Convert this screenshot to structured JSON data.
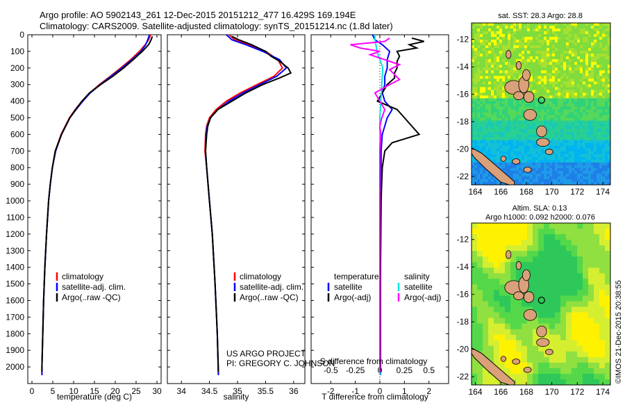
{
  "header": {
    "line1": "Argo profile: AO 5902143_261 12-Dec-2015 20151212_477 16.429S 169.194E",
    "line2": "Climatology: CARS2009. Satellite-adjusted climatology: synTS_20151214.nc (1.8d later)"
  },
  "credit": {
    "project": "US ARGO PROJECT",
    "pi": "PI: GREGORY C. JOHNSON",
    "imos": "©IMOS 21-Dec-2015 20:38:55"
  },
  "colors": {
    "climatology": "#ff0000",
    "satellite": "#0000ff",
    "argo": "#000000",
    "sat_salinity": "#00e5e5",
    "argo_salinity": "#ff00ff"
  },
  "chart_data": [
    {
      "type": "line",
      "name": "temperature",
      "xlabel": "temperature (deg C)",
      "ylabel": "",
      "xlim": [
        -1,
        31
      ],
      "ylim": [
        2100,
        0
      ],
      "xticks": [
        0,
        5,
        10,
        15,
        20,
        25,
        30
      ],
      "yticks": [
        0,
        100,
        200,
        300,
        400,
        500,
        600,
        700,
        800,
        900,
        1000,
        1100,
        1200,
        1300,
        1400,
        1500,
        1600,
        1700,
        1800,
        1900,
        2000
      ],
      "legend": [
        "climatology",
        "satellite-adj. clim.",
        "Argo(..raw -QC)"
      ],
      "series": [
        {
          "name": "climatology",
          "depth": [
            0,
            30,
            60,
            100,
            150,
            200,
            250,
            300,
            350,
            400,
            450,
            500,
            600,
            700,
            800,
            900,
            1000,
            1200,
            1400,
            1600,
            1800,
            2000,
            2050
          ],
          "values": [
            28.5,
            28.0,
            27.2,
            25.8,
            23.7,
            21.3,
            18.8,
            16.2,
            13.9,
            12.0,
            10.4,
            9.0,
            7.0,
            5.6,
            4.9,
            4.4,
            4.0,
            3.5,
            3.1,
            2.8,
            2.6,
            2.4,
            2.4
          ]
        },
        {
          "name": "satellite-adj. clim.",
          "depth": [
            0,
            30,
            60,
            100,
            150,
            200,
            250,
            300,
            350,
            400,
            450,
            500,
            600,
            700,
            800,
            900,
            1000,
            1200,
            1400,
            1600,
            1800,
            2000,
            2050
          ],
          "values": [
            28.2,
            27.8,
            27.3,
            26.2,
            24.0,
            21.6,
            19.0,
            16.4,
            14.0,
            12.2,
            10.6,
            9.1,
            7.1,
            5.7,
            4.9,
            4.4,
            4.0,
            3.5,
            3.1,
            2.8,
            2.6,
            2.4,
            2.4
          ]
        },
        {
          "name": "Argo(..raw -QC)",
          "depth": [
            10,
            30,
            60,
            100,
            150,
            200,
            250,
            300,
            350,
            400,
            450,
            500,
            600,
            700,
            800,
            900,
            1000,
            1200,
            1400,
            1600,
            1800,
            2000,
            2030
          ],
          "values": [
            28.9,
            28.6,
            28.0,
            26.5,
            24.3,
            22.0,
            19.4,
            16.5,
            13.8,
            12.0,
            10.5,
            9.1,
            7.1,
            5.6,
            4.9,
            4.4,
            4.0,
            3.5,
            3.1,
            2.8,
            2.6,
            2.4,
            2.4
          ]
        }
      ]
    },
    {
      "type": "line",
      "name": "salinity",
      "xlabel": "salinity",
      "ylabel": "",
      "xlim": [
        33.75,
        36.2
      ],
      "ylim": [
        2100,
        0
      ],
      "xticks": [
        34,
        34.5,
        35,
        35.5,
        36
      ],
      "legend": [
        "climatology",
        "satellite-adj. clim.",
        "Argo(..raw -QC)"
      ],
      "series": [
        {
          "name": "climatology",
          "depth": [
            0,
            30,
            60,
            100,
            150,
            200,
            250,
            300,
            350,
            400,
            450,
            500,
            550,
            600,
            700,
            800,
            1000,
            1200,
            1500,
            1800,
            2050
          ],
          "values": [
            34.85,
            34.95,
            35.2,
            35.5,
            35.72,
            35.8,
            35.65,
            35.35,
            35.05,
            34.8,
            34.62,
            34.5,
            34.45,
            34.43,
            34.42,
            34.45,
            34.5,
            34.55,
            34.6,
            34.64,
            34.66
          ]
        },
        {
          "name": "satellite-adj. clim.",
          "depth": [
            0,
            30,
            60,
            100,
            150,
            200,
            250,
            300,
            350,
            400,
            450,
            500,
            550,
            600,
            700,
            800,
            1000,
            1200,
            1500,
            1800,
            2050
          ],
          "values": [
            34.8,
            34.9,
            35.15,
            35.45,
            35.75,
            35.87,
            35.7,
            35.4,
            35.1,
            34.85,
            34.65,
            34.52,
            34.46,
            34.44,
            34.43,
            34.45,
            34.5,
            34.55,
            34.6,
            34.64,
            34.66
          ]
        },
        {
          "name": "Argo(..raw -QC)",
          "depth": [
            10,
            30,
            60,
            100,
            130,
            160,
            200,
            230,
            260,
            300,
            350,
            400,
            450,
            500,
            550,
            600,
            700,
            800,
            1000,
            1200,
            1500,
            1800,
            2030
          ],
          "values": [
            34.9,
            35.02,
            35.25,
            35.5,
            35.6,
            35.75,
            35.9,
            35.95,
            35.75,
            35.45,
            35.15,
            34.9,
            34.65,
            34.52,
            34.47,
            34.45,
            34.43,
            34.45,
            34.5,
            34.55,
            34.6,
            34.64,
            34.66
          ]
        }
      ]
    },
    {
      "type": "line",
      "name": "difference from climatology",
      "xlabel": "T difference from climatology",
      "xlabel_top": "S difference from climatology",
      "xlim": [
        -2.8,
        2.8
      ],
      "ylim": [
        2100,
        0
      ],
      "xticks": [
        -2,
        -1,
        0,
        1,
        2
      ],
      "xticks_top": [
        -0.5,
        -0.25,
        0,
        0.25,
        0.5
      ],
      "legend_t": [
        "temperature",
        "satellite",
        "Argo(-adj)"
      ],
      "legend_s": [
        "salinity",
        "satellite",
        "Argo(-adj)"
      ],
      "series": [
        {
          "name": "T satellite",
          "depth": [
            0,
            30,
            60,
            100,
            150,
            200,
            250,
            300,
            350,
            400,
            450,
            500,
            600,
            700,
            800,
            1000,
            1500,
            2050
          ],
          "values": [
            -0.3,
            -0.2,
            0.1,
            0.4,
            0.3,
            0.3,
            0.2,
            0.2,
            0.1,
            0.2,
            0.5,
            0.3,
            0.1,
            0.05,
            0.05,
            0.02,
            0.02,
            0.02
          ]
        },
        {
          "name": "T Argo(-adj)",
          "depth": [
            20,
            40,
            60,
            80,
            100,
            130,
            160,
            200,
            230,
            260,
            300,
            350,
            400,
            450,
            500,
            550,
            600,
            650,
            700,
            800,
            1000,
            1500,
            2030
          ],
          "values": [
            1.3,
            1.8,
            1.2,
            1.5,
            0.7,
            0.8,
            0.7,
            0.7,
            0.6,
            0.6,
            0.3,
            0.1,
            -0.1,
            0.7,
            1.0,
            1.3,
            1.6,
            0.5,
            0.2,
            0.1,
            0.05,
            0.02,
            0.02
          ]
        },
        {
          "name": "S satellite",
          "depth": [
            0,
            30,
            60,
            100,
            150,
            200,
            300,
            400,
            500,
            700,
            1000,
            1500,
            2050
          ],
          "values": [
            -0.05,
            -0.05,
            -0.04,
            -0.03,
            0.0,
            0.03,
            0.02,
            0.01,
            0.0,
            0.0,
            0.0,
            0.0,
            0.0
          ]
        },
        {
          "name": "S Argo(-adj)",
          "depth": [
            20,
            40,
            60,
            80,
            100,
            120,
            150,
            180,
            210,
            240,
            270,
            300,
            350,
            400,
            450,
            500,
            550,
            600,
            700,
            1000,
            1500,
            2030
          ],
          "values": [
            0.1,
            0.05,
            -0.3,
            -0.2,
            0.0,
            -0.1,
            0.05,
            0.2,
            0.1,
            0.15,
            0.2,
            0.1,
            -0.05,
            0.0,
            0.05,
            0.02,
            0.0,
            0.01,
            0.0,
            0.0,
            0.0,
            0.0
          ]
        }
      ]
    },
    {
      "type": "heatmap",
      "name": "SST map",
      "title": "sat. SST: 28.3  Argo: 28.8",
      "xticks": [
        164,
        166,
        168,
        170,
        172,
        174
      ],
      "yticks": [
        -12,
        -14,
        -16,
        -18,
        -20,
        -22
      ],
      "xlim": [
        163.7,
        174.6
      ],
      "ylim": [
        -22.6,
        -10.8
      ],
      "profile": {
        "lon": 169.194,
        "lat": -16.429
      }
    },
    {
      "type": "heatmap",
      "name": "SLA map",
      "title1": "Altim. SLA: 0.13",
      "title2": "Argo h1000: 0.092 h2000: 0.076",
      "xticks": [
        164,
        166,
        168,
        170,
        172,
        174
      ],
      "yticks": [
        -12,
        -14,
        -16,
        -18,
        -20,
        -22
      ],
      "xlim": [
        163.7,
        174.6
      ],
      "ylim": [
        -22.6,
        -10.8
      ],
      "profile": {
        "lon": 169.194,
        "lat": -16.429
      }
    }
  ]
}
